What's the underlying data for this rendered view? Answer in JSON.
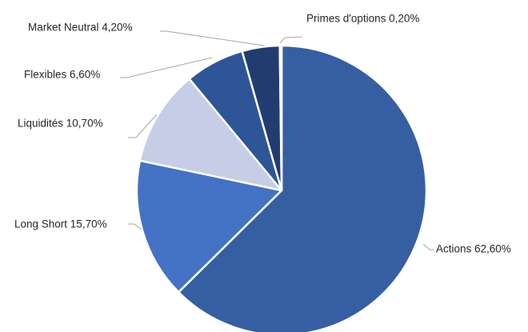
{
  "chart_data": {
    "type": "pie",
    "categories": [
      "Actions",
      "Long Short",
      "Liquidités",
      "Flexibles",
      "Market Neutral",
      "Primes d'options"
    ],
    "values": [
      62.6,
      15.7,
      10.7,
      6.6,
      4.2,
      0.2
    ],
    "labels": [
      "Actions 62,60%",
      "Long Short 15,70%",
      "Liquidités 10,70%",
      "Flexibles 6,60%",
      "Market Neutral 4,20%",
      "Primes d'options 0,20%"
    ],
    "colors": [
      "#365fa3",
      "#4472c4",
      "#c5cee6",
      "#2e5597",
      "#213d70",
      "#8faadc"
    ],
    "start_angle": "12 o'clock",
    "direction": "clockwise"
  }
}
